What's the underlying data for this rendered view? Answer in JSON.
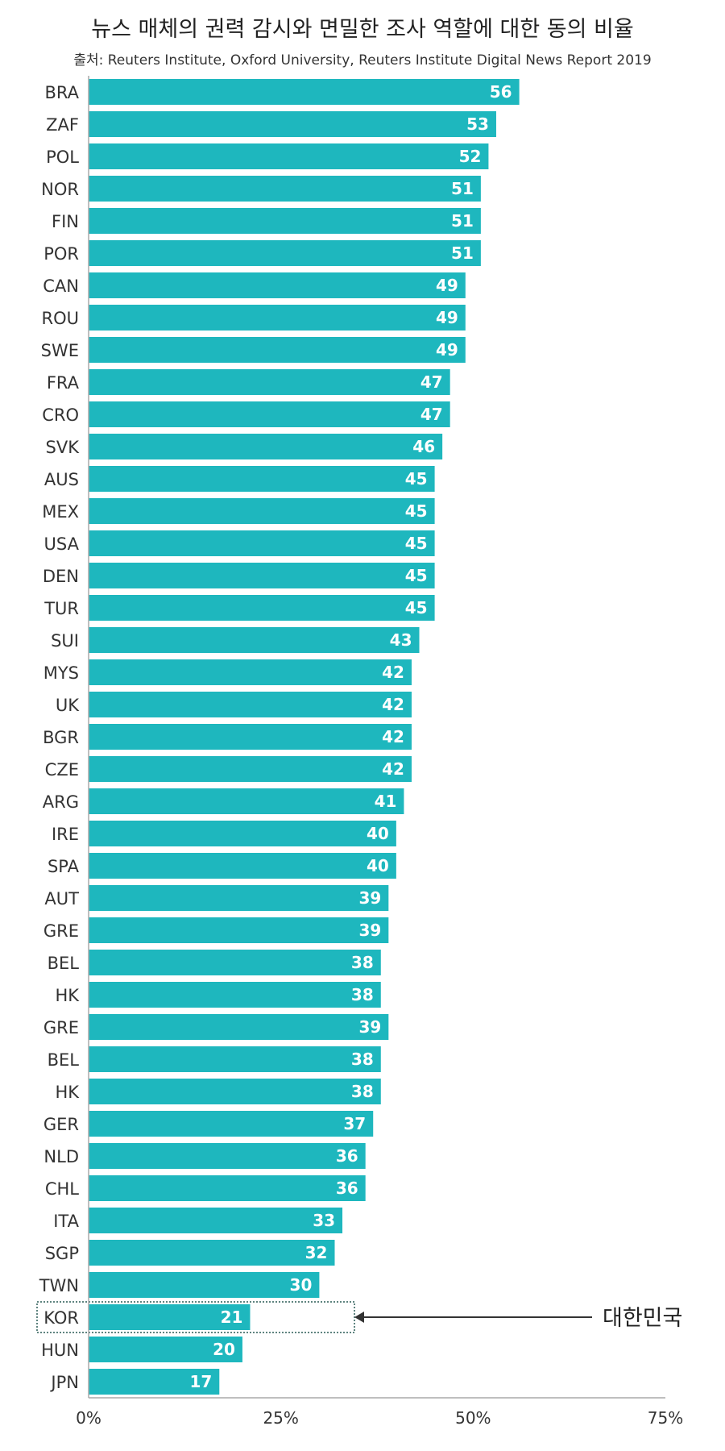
{
  "chart_data": {
    "type": "bar",
    "orientation": "horizontal",
    "title": "뉴스 매체의 권력 감시와 면밀한 조사 역할에 대한 동의 비율",
    "subtitle": "출처: Reuters Institute, Oxford University, Reuters Institute Digital News Report 2019",
    "categories": [
      "BRA",
      "ZAF",
      "POL",
      "NOR",
      "FIN",
      "POR",
      "CAN",
      "ROU",
      "SWE",
      "FRA",
      "CRO",
      "SVK",
      "AUS",
      "MEX",
      "USA",
      "DEN",
      "TUR",
      "SUI",
      "MYS",
      "UK",
      "BGR",
      "CZE",
      "ARG",
      "IRE",
      "SPA",
      "AUT",
      "GRE",
      "BEL",
      "HK",
      "GRE",
      "BEL",
      "HK",
      "GER",
      "NLD",
      "CHL",
      "ITA",
      "SGP",
      "TWN",
      "KOR",
      "HUN",
      "JPN"
    ],
    "values": [
      56,
      53,
      52,
      51,
      51,
      51,
      49,
      49,
      49,
      47,
      47,
      46,
      45,
      45,
      45,
      45,
      45,
      43,
      42,
      42,
      42,
      42,
      41,
      40,
      40,
      39,
      39,
      38,
      38,
      39,
      38,
      38,
      37,
      36,
      36,
      33,
      32,
      30,
      21,
      20,
      17
    ],
    "xlim": [
      0,
      75
    ],
    "x_ticks": [
      "0%",
      "25%",
      "50%",
      "75%"
    ],
    "bar_color": "#1eb7be",
    "highlight": {
      "category": "KOR",
      "label": "대한민국"
    }
  }
}
